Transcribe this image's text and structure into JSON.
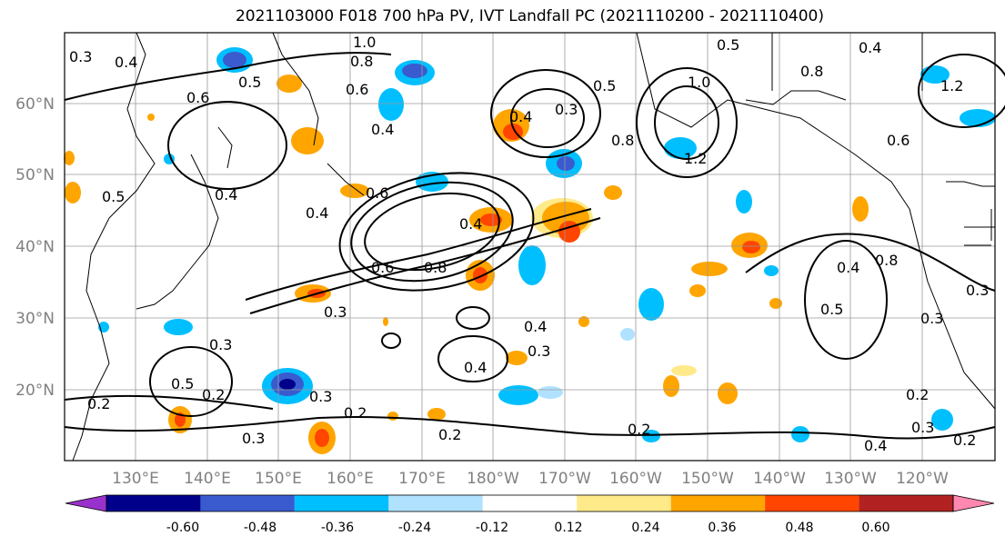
{
  "title": "2021103000 F018 700 hPa PV, IVT Landfall PC (2021110200 - 2021110400)",
  "lat_labels": [
    "60°N",
    "50°N",
    "40°N",
    "30°N",
    "20°N"
  ],
  "lon_labels": [
    "130°E",
    "140°E",
    "150°E",
    "160°E",
    "170°E",
    "180°W",
    "170°W",
    "160°W",
    "150°W",
    "140°W",
    "130°W",
    "120°W"
  ],
  "colorbar": {
    "colors": [
      "#9932CC",
      "#00008B",
      "#3A5BCF",
      "#00BFFF",
      "#B0E2FF",
      "#FFFFFF",
      "#FFEA8A",
      "#FFA500",
      "#FF4500",
      "#B22222",
      "#FF88B0"
    ],
    "tick_labels": [
      "-0.60",
      "-0.48",
      "-0.36",
      "-0.24",
      "-0.12",
      "0.12",
      "0.24",
      "0.36",
      "0.48",
      "0.60"
    ]
  },
  "contour_labels": [
    "0.3",
    "0.4",
    "1.0",
    "0.8",
    "0.5",
    "0.6",
    "0.6",
    "0.4",
    "0.5",
    "0.4",
    "0.3",
    "0.8",
    "1.2",
    "0.4",
    "0.4",
    "0.5",
    "0.6",
    "0.5",
    "0.4",
    "0.6",
    "0.8",
    "1.0",
    "1.2",
    "0.4",
    "0.8",
    "0.3",
    "0.4",
    "0.3",
    "0.4",
    "0.5",
    "0.6",
    "0.8",
    "0.3",
    "0.3",
    "0.5",
    "0.2",
    "0.3",
    "0.2",
    "0.3",
    "0.2",
    "0.2",
    "0.4",
    "0.3",
    "0.2",
    "0.4",
    "0.2",
    "0.3",
    "0.2"
  ]
}
